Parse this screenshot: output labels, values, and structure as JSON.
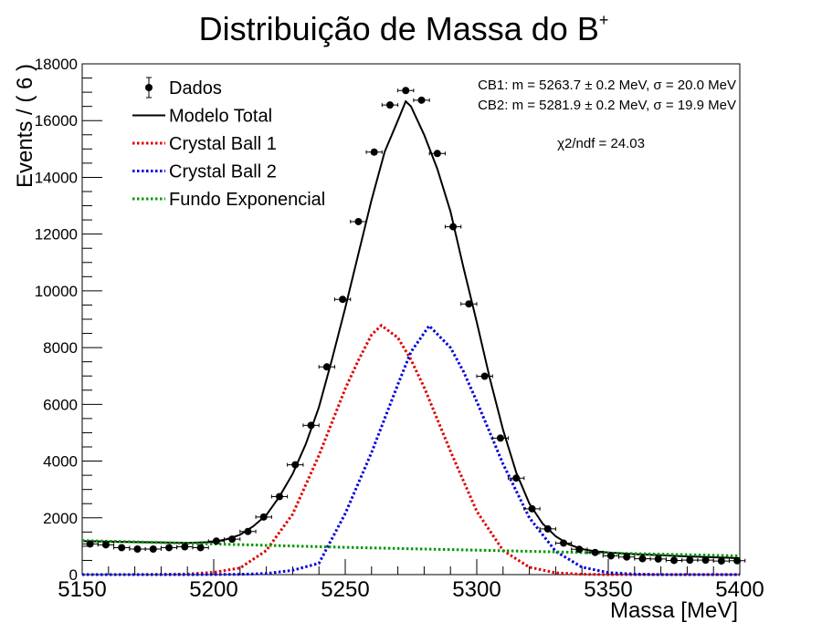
{
  "chart_data": {
    "type": "scatter",
    "title": "Distribuição de Massa do B",
    "title_superscript": "+",
    "xlabel": "Massa [MeV]",
    "ylabel": "Events / ( 6 )",
    "xlim": [
      5150,
      5400
    ],
    "ylim": [
      0,
      18000
    ],
    "x_ticks": [
      5150,
      5200,
      5250,
      5300,
      5350,
      5400
    ],
    "y_ticks": [
      0,
      2000,
      4000,
      6000,
      8000,
      10000,
      12000,
      14000,
      16000,
      18000
    ],
    "grid": false,
    "legend_position": "top-left",
    "legend": [
      {
        "label": "Dados",
        "style": "marker",
        "color": "#000000"
      },
      {
        "label": "Modelo Total",
        "style": "solid",
        "color": "#000000"
      },
      {
        "label": "Crystal Ball 1",
        "style": "dotted",
        "color": "#e00000"
      },
      {
        "label": "Crystal Ball 2",
        "style": "dotted",
        "color": "#0000dd"
      },
      {
        "label": "Fundo Exponencial",
        "style": "dotted",
        "color": "#009900"
      }
    ],
    "annotations": [
      "CB1: m = 5263.7 ± 0.2 MeV, σ = 20.0 MeV",
      "CB2: m = 5281.9 ± 0.2 MeV, σ = 19.9 MeV",
      "χ2/ndf = 24.03"
    ],
    "data_points": {
      "name": "Dados",
      "x_halfwidth": 3,
      "x": [
        5153,
        5159,
        5165,
        5171,
        5177,
        5183,
        5189,
        5195,
        5201,
        5207,
        5213,
        5219,
        5225,
        5231,
        5237,
        5243,
        5249,
        5255,
        5261,
        5267,
        5273,
        5279,
        5285,
        5291,
        5297,
        5303,
        5309,
        5315,
        5321,
        5327,
        5333,
        5339,
        5345,
        5351,
        5357,
        5363,
        5369,
        5375,
        5381,
        5387,
        5393,
        5399
      ],
      "y": [
        1080,
        1050,
        950,
        900,
        900,
        950,
        980,
        950,
        1180,
        1250,
        1520,
        2030,
        2750,
        3870,
        5260,
        7320,
        9700,
        12440,
        14890,
        16550,
        17060,
        16720,
        14840,
        12260,
        9540,
        6990,
        4810,
        3400,
        2320,
        1610,
        1110,
        890,
        780,
        660,
        620,
        560,
        550,
        500,
        510,
        510,
        480,
        490
      ]
    },
    "curves": [
      {
        "name": "Modelo Total",
        "color": "#000000",
        "x": [
          5150,
          5160,
          5170,
          5180,
          5190,
          5200,
          5205,
          5210,
          5215,
          5220,
          5225,
          5230,
          5235,
          5240,
          5245,
          5250,
          5255,
          5260,
          5265,
          5270,
          5273,
          5275,
          5280,
          5285,
          5290,
          5295,
          5300,
          5305,
          5310,
          5315,
          5320,
          5325,
          5330,
          5335,
          5340,
          5345,
          5350,
          5360,
          5370,
          5380,
          5390,
          5400
        ],
        "y": [
          1180,
          1160,
          1145,
          1130,
          1120,
          1150,
          1250,
          1400,
          1700,
          2100,
          2750,
          3550,
          4600,
          5900,
          7600,
          9400,
          11300,
          13200,
          14900,
          16000,
          16680,
          16500,
          15500,
          14300,
          12800,
          10800,
          8900,
          6900,
          5100,
          3600,
          2500,
          1800,
          1350,
          1060,
          900,
          820,
          780,
          720,
          680,
          640,
          610,
          580
        ]
      },
      {
        "name": "Crystal Ball 1",
        "color": "#e00000",
        "x": [
          5150,
          5170,
          5190,
          5200,
          5210,
          5220,
          5230,
          5240,
          5250,
          5255,
          5260,
          5263.7,
          5270,
          5275,
          5280,
          5290,
          5300,
          5310,
          5320,
          5330,
          5340,
          5350,
          5360,
          5400
        ],
        "y": [
          0,
          0,
          20,
          80,
          230,
          850,
          2130,
          4200,
          6550,
          7550,
          8450,
          8780,
          8350,
          7570,
          6600,
          4350,
          2230,
          850,
          260,
          60,
          12,
          0,
          0,
          0
        ]
      },
      {
        "name": "Crystal Ball 2",
        "color": "#0000dd",
        "x": [
          5150,
          5190,
          5210,
          5220,
          5230,
          5240,
          5250,
          5260,
          5270,
          5275,
          5281.9,
          5290,
          5295,
          5300,
          5310,
          5320,
          5330,
          5340,
          5350,
          5360,
          5370,
          5400
        ],
        "y": [
          0,
          0,
          10,
          40,
          150,
          400,
          2150,
          4300,
          6700,
          7850,
          8770,
          8000,
          7150,
          6100,
          3900,
          2000,
          820,
          260,
          70,
          15,
          0,
          0
        ]
      },
      {
        "name": "Fundo Exponencial",
        "color": "#009900",
        "x": [
          5150,
          5175,
          5200,
          5225,
          5250,
          5275,
          5300,
          5325,
          5350,
          5375,
          5400
        ],
        "y": [
          1200,
          1140,
          1080,
          1020,
          960,
          910,
          860,
          810,
          760,
          710,
          660
        ]
      }
    ]
  }
}
